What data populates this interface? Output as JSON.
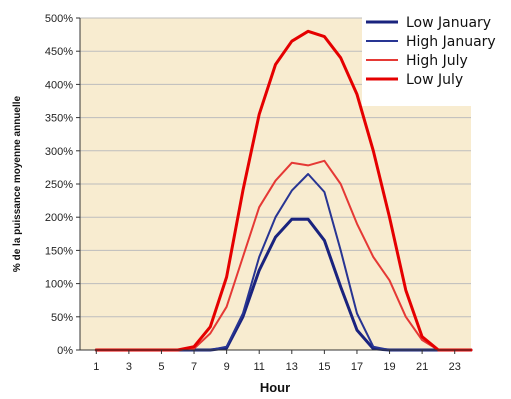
{
  "chart_data": {
    "type": "line",
    "xlabel": "Hour",
    "ylabel": "% de la puissance moyenne annuelle",
    "xlim": [
      0,
      24
    ],
    "ylim": [
      0,
      500
    ],
    "x_ticks": [
      1,
      3,
      5,
      7,
      9,
      11,
      13,
      15,
      17,
      19,
      21,
      23
    ],
    "y_ticks": [
      0,
      50,
      100,
      150,
      200,
      250,
      300,
      350,
      400,
      450,
      500
    ],
    "y_tick_labels": [
      "0%",
      "50%",
      "100%",
      "150%",
      "200%",
      "250%",
      "300%",
      "350%",
      "400%",
      "450%",
      "500%"
    ],
    "grid": "horizontal",
    "plot_background": "#f8ecd0",
    "legend_position": "top-right",
    "series": [
      {
        "name": "Low January",
        "color": "#1a237e",
        "line_width": 3,
        "x": [
          1,
          2,
          3,
          4,
          5,
          6,
          7,
          8,
          9,
          10,
          11,
          12,
          13,
          14,
          15,
          16,
          17,
          18,
          19,
          20,
          21,
          22,
          23,
          24
        ],
        "values": [
          0,
          0,
          0,
          0,
          0,
          0,
          0,
          0,
          3,
          50,
          120,
          170,
          197,
          197,
          165,
          95,
          30,
          2,
          0,
          0,
          0,
          0,
          0,
          0
        ]
      },
      {
        "name": "High January",
        "color": "#283593",
        "line_width": 2,
        "x": [
          1,
          2,
          3,
          4,
          5,
          6,
          7,
          8,
          9,
          10,
          11,
          12,
          13,
          14,
          15,
          16,
          17,
          18,
          19,
          20,
          21,
          22,
          23,
          24
        ],
        "values": [
          0,
          0,
          0,
          0,
          0,
          0,
          0,
          0,
          5,
          55,
          140,
          200,
          240,
          265,
          238,
          150,
          55,
          5,
          0,
          0,
          0,
          0,
          0,
          0
        ]
      },
      {
        "name": "High July",
        "color": "#e53935",
        "line_width": 2,
        "x": [
          1,
          2,
          3,
          4,
          5,
          6,
          7,
          8,
          9,
          10,
          11,
          12,
          13,
          14,
          15,
          16,
          17,
          18,
          19,
          20,
          21,
          22,
          23,
          24
        ],
        "values": [
          0,
          0,
          0,
          0,
          0,
          0,
          2,
          25,
          65,
          140,
          215,
          255,
          282,
          278,
          285,
          250,
          190,
          140,
          105,
          50,
          15,
          0,
          0,
          0
        ]
      },
      {
        "name": "Low July",
        "color": "#e50000",
        "line_width": 3,
        "x": [
          1,
          2,
          3,
          4,
          5,
          6,
          7,
          8,
          9,
          10,
          11,
          12,
          13,
          14,
          15,
          16,
          17,
          18,
          19,
          20,
          21,
          22,
          23,
          24
        ],
        "values": [
          0,
          0,
          0,
          0,
          0,
          0,
          5,
          35,
          110,
          240,
          355,
          430,
          465,
          480,
          472,
          440,
          385,
          300,
          200,
          90,
          20,
          0,
          0,
          0
        ]
      }
    ]
  }
}
